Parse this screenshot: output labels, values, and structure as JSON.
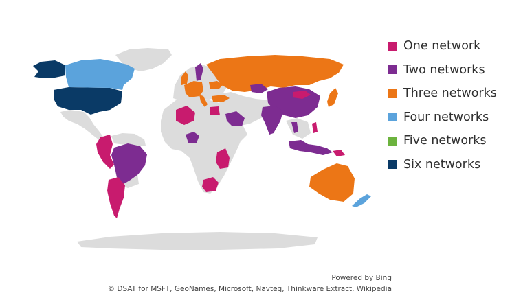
{
  "legend": [
    {
      "label": "One network",
      "color": "#c81b6e"
    },
    {
      "label": "Two networks",
      "color": "#7d2c91"
    },
    {
      "label": "Three networks",
      "color": "#ec7616"
    },
    {
      "label": "Four networks",
      "color": "#5ba3dc"
    },
    {
      "label": "Five networks",
      "color": "#6cb33e"
    },
    {
      "label": "Six networks",
      "color": "#0a3a66"
    }
  ],
  "base_color": "#dcdcdc",
  "credits": {
    "powered_by": "Powered by Bing",
    "sources": "© DSAT for MSFT, GeoNames, Microsoft, Navteq, Thinkware Extract, Wikipedia"
  },
  "regions": {
    "six": [
      "United States"
    ],
    "four": [
      "Canada",
      "New Zealand"
    ],
    "three": [
      "Russia",
      "Australia",
      "Japan",
      "United Kingdom",
      "France",
      "Germany",
      "Italy",
      "Spain",
      "Turkey",
      "Ukraine"
    ],
    "two": [
      "Brazil",
      "China",
      "India",
      "Indonesia",
      "Saudi Arabia",
      "Iran",
      "Nigeria",
      "Kazakhstan",
      "Sweden",
      "Thailand"
    ],
    "one": [
      "Peru",
      "Colombia",
      "Argentina",
      "Chile",
      "Algeria",
      "Egypt",
      "Kenya",
      "Tanzania",
      "South Africa",
      "Mongolia",
      "Philippines",
      "Papua New Guinea"
    ]
  }
}
